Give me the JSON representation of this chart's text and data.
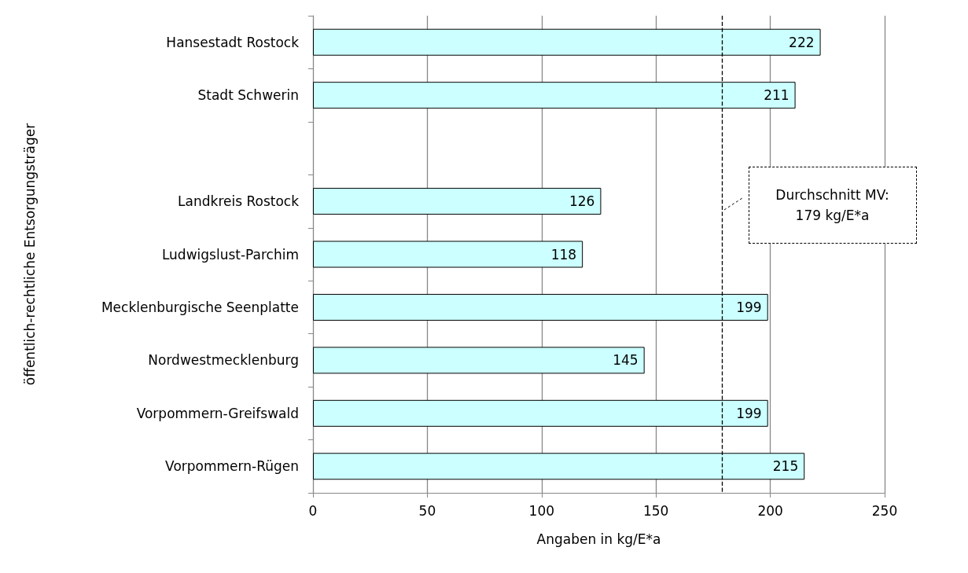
{
  "chart_data": {
    "type": "bar",
    "orientation": "horizontal",
    "categories": [
      "Hansestadt Rostock",
      "Stadt Schwerin",
      null,
      "Landkreis Rostock",
      "Ludwigslust-Parchim",
      "Mecklenburgische Seenplatte",
      "Nordwestmecklenburg",
      "Vorpommern-Greifswald",
      "Vorpommern-Rügen"
    ],
    "values": [
      222,
      211,
      null,
      126,
      118,
      199,
      145,
      199,
      215
    ],
    "color": "#ccffff",
    "data_labels": true,
    "xlabel": "Angaben in kg/E*a",
    "ylabel": "öffentlich-rechtliche Entsorgungsträger",
    "xlim": [
      0,
      250
    ],
    "xticks": [
      0,
      50,
      100,
      150,
      200,
      250
    ],
    "grid": "x",
    "ref_lines": [
      {
        "axis": "x",
        "value": 179,
        "label": "Durchschnitt MV:\n179 kg/E*a",
        "color": "#000000",
        "line_style": "dashed"
      }
    ]
  }
}
